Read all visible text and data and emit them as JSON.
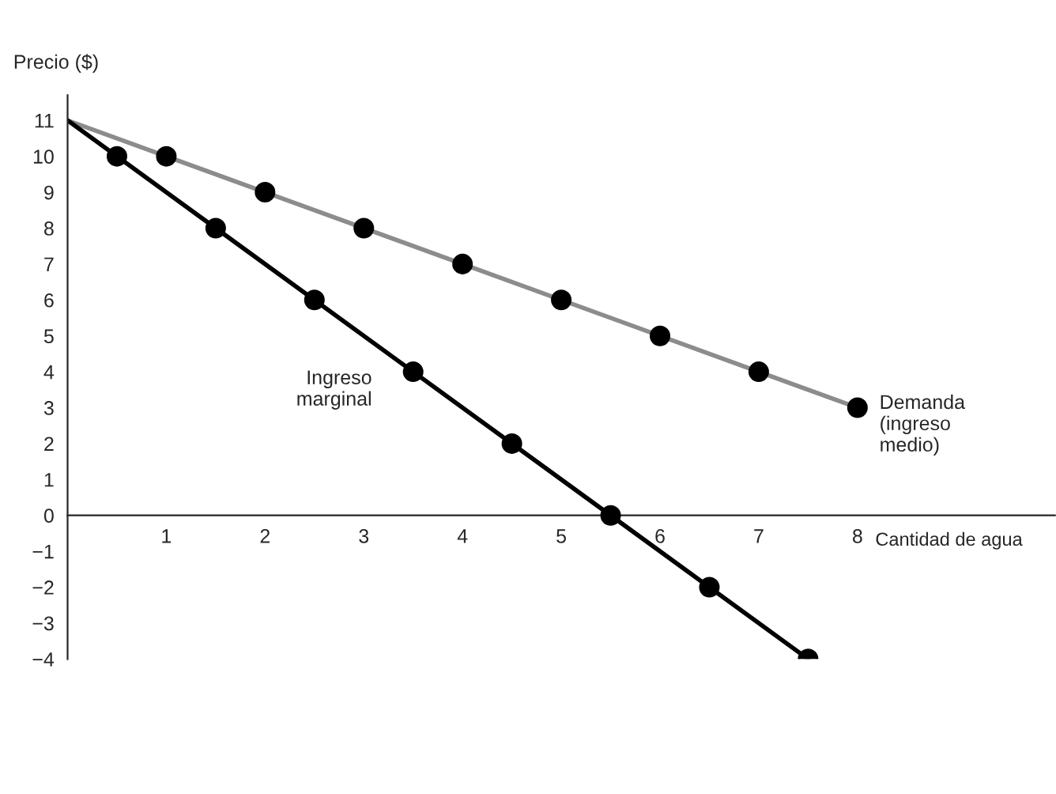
{
  "chart_data": {
    "type": "line",
    "ylabel": "Precio ($)",
    "xlabel": "Cantidad de agua",
    "xlim": [
      0,
      10
    ],
    "ylim": [
      -4,
      11.7
    ],
    "xticks": [
      1,
      2,
      3,
      4,
      5,
      6,
      7,
      8
    ],
    "yticks": [
      {
        "value": -4,
        "label": "−4"
      },
      {
        "value": -3,
        "label": "−3"
      },
      {
        "value": -2,
        "label": "−2"
      },
      {
        "value": -1,
        "label": "−1"
      },
      0,
      1,
      2,
      3,
      4,
      5,
      6,
      7,
      8,
      9,
      10,
      11
    ],
    "grid": false,
    "legend": false,
    "series": [
      {
        "name": "Demanda\n(ingreso\nmedio)",
        "color": "#8c8c8c",
        "marker": "none",
        "x": [
          0,
          8
        ],
        "values": [
          11,
          3
        ]
      },
      {
        "type": "scatter",
        "color": "#000000",
        "marker": "circle",
        "x": [
          1,
          2,
          3,
          4,
          5,
          6,
          7,
          8
        ],
        "values": [
          10,
          9,
          8,
          7,
          6,
          5,
          4,
          3
        ]
      },
      {
        "name": "Ingreso\nmarginal",
        "color": "#000000",
        "marker": "none",
        "x": [
          0,
          7.5
        ],
        "values": [
          11,
          -4
        ]
      },
      {
        "type": "scatter",
        "color": "#000000",
        "marker": "circle",
        "x": [
          0.5,
          1.5,
          2.5,
          3.5,
          4.5,
          5.5,
          6.5,
          7.5
        ],
        "values": [
          10,
          8,
          6,
          4,
          2,
          0,
          -2,
          -4
        ]
      }
    ]
  }
}
